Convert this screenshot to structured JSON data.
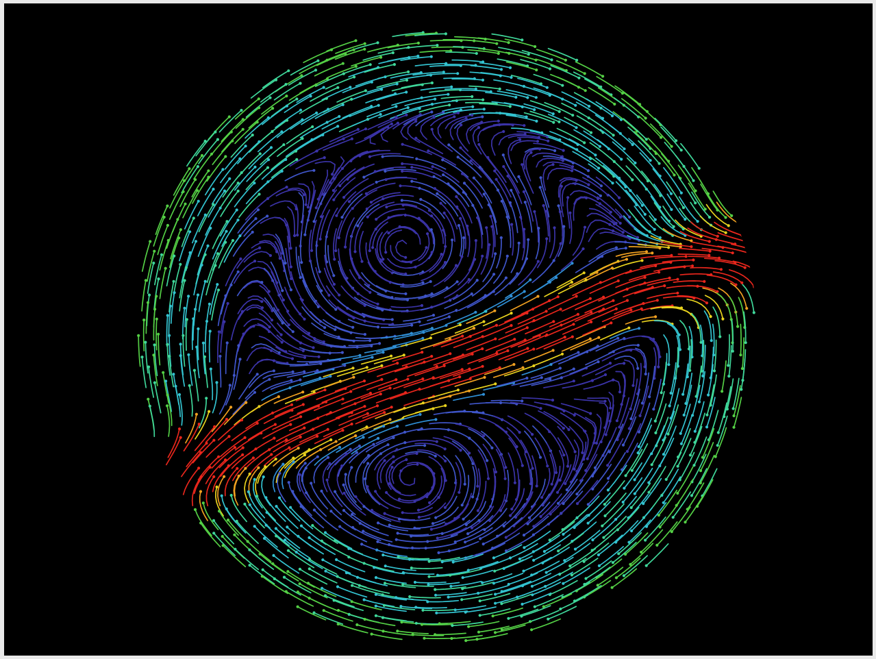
{
  "image": {
    "kind": "flow-field-visualization",
    "background_color": "#000000",
    "frame_color": "#e9e9e9"
  },
  "flow_field": {
    "shape": "circle",
    "pattern": "counter-rotating-vortex-pair-with-central-jet",
    "colormap": [
      "#3b33a8",
      "#3f55c9",
      "#2f8fd6",
      "#33c3d0",
      "#3fd79a",
      "#54cf45",
      "#9fdc2e",
      "#e8d21e",
      "#f0a020",
      "#e8261c"
    ],
    "jet_color": "#e8261c",
    "rim_color": "#4fd36c",
    "vortex_core_color": "#3b33a8"
  }
}
